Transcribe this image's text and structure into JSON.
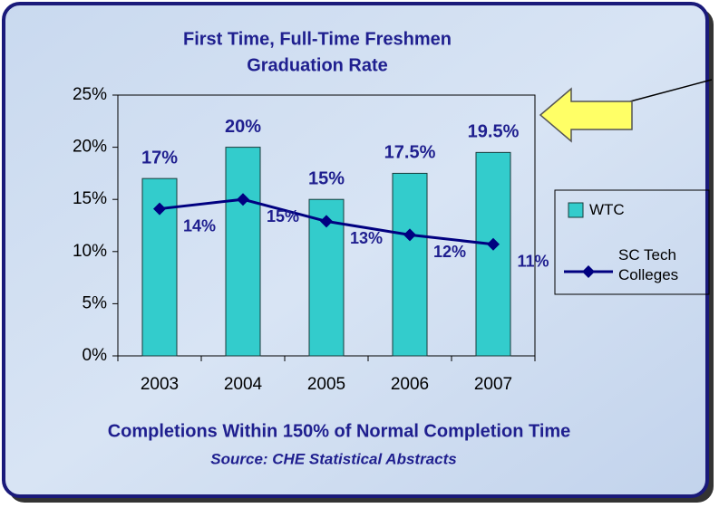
{
  "chart_data": {
    "type": "bar",
    "title": [
      "First Time, Full-Time Freshmen",
      "Graduation Rate"
    ],
    "categories": [
      "2003",
      "2004",
      "2005",
      "2006",
      "2007"
    ],
    "series": [
      {
        "name": "WTC",
        "type": "bar",
        "color": "#33cccc",
        "values": [
          17,
          20,
          15,
          17.5,
          19.5
        ],
        "value_labels": [
          "17%",
          "20%",
          "15%",
          "17.5%",
          "19.5%"
        ]
      },
      {
        "name": "SC Tech Colleges",
        "type": "line",
        "color": "#000080",
        "values": [
          14.1,
          15,
          12.9,
          11.6,
          10.7
        ],
        "value_labels": [
          "14%",
          "15%",
          "13%",
          "12%",
          "11%"
        ]
      }
    ],
    "ylim": [
      0,
      25
    ],
    "yticks": [
      {
        "value": 0,
        "label": "0%"
      },
      {
        "value": 5,
        "label": "5%"
      },
      {
        "value": 10,
        "label": "10%"
      },
      {
        "value": 15,
        "label": "15%"
      },
      {
        "value": 20,
        "label": "20%"
      },
      {
        "value": 25,
        "label": "25%"
      }
    ],
    "grid": false,
    "legend": "right",
    "annotations": [
      "Completions Within 150% of Normal Completion Time",
      "Source: CHE Statistical Abstracts"
    ]
  }
}
